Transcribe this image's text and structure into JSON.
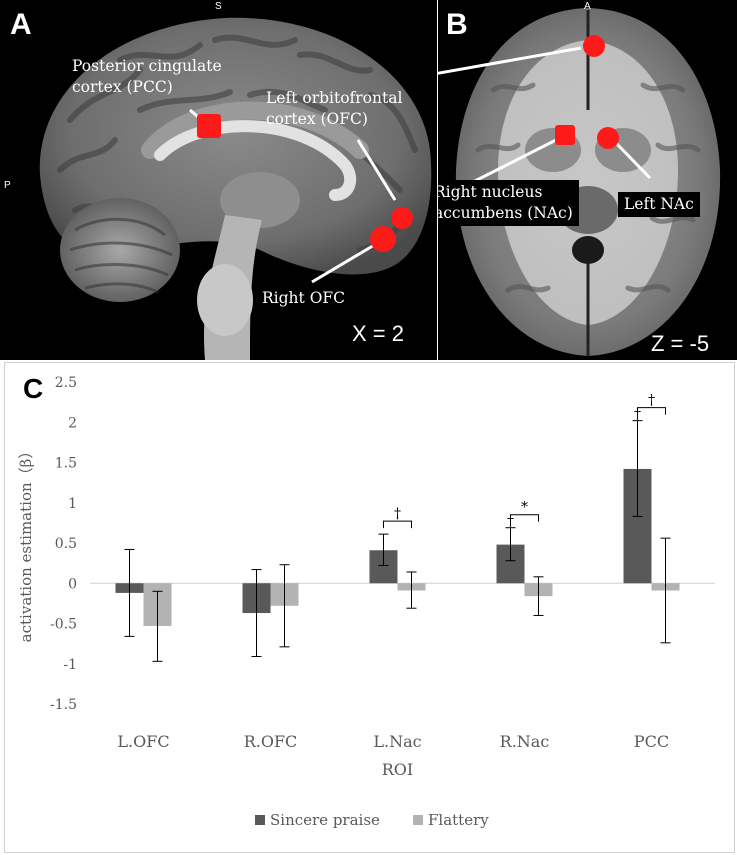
{
  "panelA": {
    "letter": "A",
    "orient_top": "S",
    "orient_left": "P",
    "coord": "X = 2",
    "labels": {
      "pcc": "Posterior cingulate\ncortex (PCC)",
      "lofc": "Left orbitofrontal\ncortex (OFC)",
      "rofc": "Right OFC"
    }
  },
  "panelB": {
    "letter": "B",
    "orient_top": "A",
    "coord": "Z = -5",
    "labels": {
      "rnac": "Right nucleus\naccumbens (NAc)",
      "lnac": "Left NAc"
    }
  },
  "panelC": {
    "letter": "C"
  },
  "colors": {
    "roi": "#ff1a1a",
    "sincere": "#595959",
    "flattery": "#b3b3b3"
  },
  "chart_data": {
    "type": "bar",
    "xlabel": "ROI",
    "ylabel": "activation estimation（β）",
    "ylim": [
      -1.5,
      2.5
    ],
    "yticks": [
      -1.5,
      -1,
      -0.5,
      0,
      0.5,
      1,
      1.5,
      2,
      2.5
    ],
    "ytick_labels": [
      "-1.5",
      "-1",
      "-0.5",
      "0",
      "0.5",
      "1",
      "1.5",
      "2",
      "2.5"
    ],
    "grid": false,
    "legend": "bottom",
    "categories": [
      "L.OFC",
      "R.OFC",
      "L.Nac",
      "R.Nac",
      "PCC"
    ],
    "series": [
      {
        "name": "Sincere praise",
        "values": [
          -0.12,
          -0.37,
          0.41,
          0.48,
          1.42
        ],
        "err_low": [
          -0.66,
          -0.91,
          0.22,
          0.28,
          0.83
        ],
        "err_high": [
          0.42,
          0.17,
          0.61,
          0.69,
          2.02
        ]
      },
      {
        "name": "Flattery",
        "values": [
          -0.53,
          -0.28,
          -0.09,
          -0.16,
          -0.09
        ],
        "err_low": [
          -0.97,
          -0.79,
          -0.31,
          -0.4,
          -0.74
        ],
        "err_high": [
          -0.1,
          0.23,
          0.14,
          0.08,
          0.56
        ]
      }
    ],
    "annotations": [
      {
        "category": "L.Nac",
        "type": "bracket",
        "text": "†"
      },
      {
        "category": "R.Nac",
        "type": "bracket",
        "text": "*"
      },
      {
        "category": "R.Nac",
        "type": "bar",
        "text": "†"
      },
      {
        "category": "PCC",
        "type": "bracket",
        "text": "†"
      },
      {
        "category": "PCC",
        "type": "bar",
        "text": "†"
      }
    ]
  }
}
